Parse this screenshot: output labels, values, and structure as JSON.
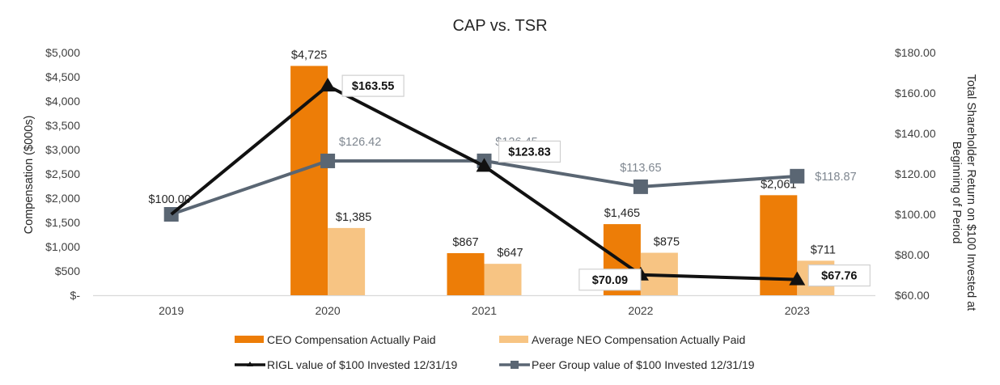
{
  "chart_data": {
    "type": "bar",
    "title": "CAP vs. TSR",
    "categories": [
      "2019",
      "2020",
      "2021",
      "2022",
      "2023"
    ],
    "y_left": {
      "label": "Compensation ($000s)",
      "range": [
        0,
        5000
      ],
      "ticks": [
        0,
        500,
        1000,
        1500,
        2000,
        2500,
        3000,
        3500,
        4000,
        4500,
        5000
      ],
      "tick_labels": [
        "$-",
        "$500",
        "$1,000",
        "$1,500",
        "$2,000",
        "$2,500",
        "$3,000",
        "$3,500",
        "$4,000",
        "$4,500",
        "$5,000"
      ]
    },
    "y_right": {
      "label_line1": "Total Shareholder Return on $100 Invested at",
      "label_line2": "Beginning of Period",
      "range": [
        60,
        180
      ],
      "ticks": [
        60,
        80,
        100,
        120,
        140,
        160,
        180
      ],
      "tick_labels": [
        "$60.00",
        "$80.00",
        "$100.00",
        "$120.00",
        "$140.00",
        "$160.00",
        "$180.00"
      ]
    },
    "grid": false,
    "legend_position": "bottom",
    "bar_series": [
      {
        "name": "CEO Compensation Actually Paid",
        "color": "#ed7d07",
        "axis": "left",
        "values": [
          null,
          4725,
          867,
          1465,
          2061
        ],
        "labels": [
          "",
          "$4,725",
          "$867",
          "$1,465",
          "$2,061"
        ]
      },
      {
        "name": "Average NEO Compensation Actually Paid",
        "color": "#f7c483",
        "axis": "left",
        "values": [
          null,
          1385,
          647,
          875,
          711
        ],
        "labels": [
          "",
          "$1,385",
          "$647",
          "$875",
          "$711"
        ]
      }
    ],
    "line_series": [
      {
        "name": "RIGL value of $100 Invested 12/31/19",
        "color": "#111111",
        "marker": "triangle",
        "axis": "right",
        "values": [
          100.0,
          163.55,
          123.83,
          70.09,
          67.76
        ],
        "labels": [
          "",
          "$163.55",
          "$123.83",
          "$70.09",
          "$67.76"
        ]
      },
      {
        "name": "Peer Group value of $100 Invested 12/31/19",
        "color": "#5a6673",
        "marker": "square",
        "axis": "right",
        "values": [
          100.0,
          126.42,
          126.45,
          113.65,
          118.87
        ],
        "labels": [
          "$100.00",
          "$126.42",
          "$126.45",
          "$113.65",
          "$118.87"
        ]
      }
    ]
  }
}
